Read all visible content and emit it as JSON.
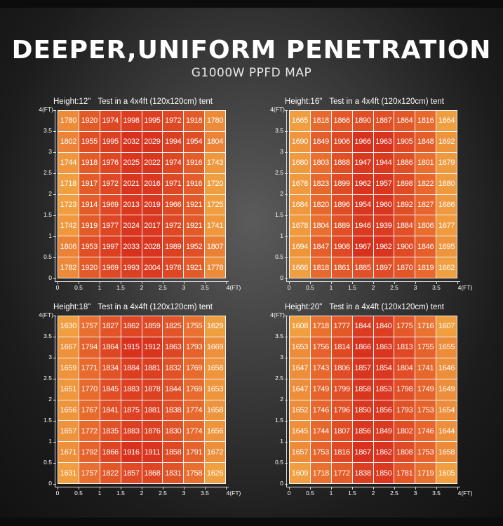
{
  "title": "DEEPER,UNIFORM PENETRATION",
  "subtitle": "G1000W PPFD MAP",
  "axis_unit": "(FT)",
  "y_ticks": [
    "4(FT)",
    "3.5",
    "3",
    "2.5",
    "2",
    "1.5",
    "1",
    "0.5",
    "0"
  ],
  "x_ticks": [
    "0",
    "0.5",
    "1",
    "1.5",
    "2",
    "2.5",
    "3",
    "3.5",
    "4(FT)"
  ],
  "panels": [
    {
      "height_label": "Height:12\"",
      "test_label": "Test in a 4x4ft (120x120cm) tent",
      "rows": [
        [
          1780,
          1920,
          1974,
          1998,
          1995,
          1972,
          1918,
          1780
        ],
        [
          1802,
          1955,
          1995,
          2032,
          2029,
          1994,
          1954,
          1804
        ],
        [
          1744,
          1918,
          1976,
          2025,
          2022,
          1974,
          1916,
          1743
        ],
        [
          1718,
          1917,
          1972,
          2021,
          2016,
          1971,
          1916,
          1720
        ],
        [
          1723,
          1914,
          1969,
          2013,
          2019,
          1966,
          1921,
          1725
        ],
        [
          1742,
          1919,
          1977,
          2024,
          2017,
          1972,
          1921,
          1741
        ],
        [
          1806,
          1953,
          1997,
          2033,
          2028,
          1989,
          1952,
          1807
        ],
        [
          1782,
          1920,
          1969,
          1993,
          2004,
          1978,
          1921,
          1778
        ]
      ]
    },
    {
      "height_label": "Height:16\"",
      "test_label": "Test in a 4x4ft (120x120cm) tent",
      "rows": [
        [
          1665,
          1818,
          1866,
          1890,
          1887,
          1864,
          1816,
          1664
        ],
        [
          1690,
          1849,
          1906,
          1966,
          1963,
          1905,
          1848,
          1692
        ],
        [
          1680,
          1803,
          1888,
          1947,
          1944,
          1886,
          1801,
          1679
        ],
        [
          1678,
          1823,
          1899,
          1962,
          1957,
          1898,
          1822,
          1680
        ],
        [
          1684,
          1820,
          1896,
          1954,
          1960,
          1892,
          1827,
          1686
        ],
        [
          1678,
          1804,
          1889,
          1946,
          1939,
          1884,
          1806,
          1677
        ],
        [
          1694,
          1847,
          1908,
          1967,
          1962,
          1900,
          1846,
          1695
        ],
        [
          1666,
          1818,
          1861,
          1885,
          1897,
          1870,
          1819,
          1662
        ]
      ]
    },
    {
      "height_label": "Height:18\"",
      "test_label": "Test in a 4x4ft (120x120cm) tent",
      "rows": [
        [
          1630,
          1757,
          1827,
          1862,
          1859,
          1825,
          1755,
          1629
        ],
        [
          1667,
          1794,
          1864,
          1915,
          1912,
          1863,
          1793,
          1669
        ],
        [
          1659,
          1771,
          1834,
          1884,
          1881,
          1832,
          1769,
          1658
        ],
        [
          1651,
          1770,
          1845,
          1883,
          1878,
          1844,
          1769,
          1653
        ],
        [
          1656,
          1767,
          1841,
          1875,
          1881,
          1838,
          1774,
          1658
        ],
        [
          1657,
          1772,
          1835,
          1883,
          1876,
          1830,
          1774,
          1656
        ],
        [
          1671,
          1792,
          1866,
          1916,
          1911,
          1858,
          1791,
          1672
        ],
        [
          1631,
          1757,
          1822,
          1857,
          1868,
          1831,
          1758,
          1626
        ]
      ]
    },
    {
      "height_label": "Height:20\"",
      "test_label": "Test in a 4x4ft (120x120cm) tent",
      "rows": [
        [
          1608,
          1718,
          1777,
          1844,
          1840,
          1775,
          1716,
          1607
        ],
        [
          1653,
          1756,
          1814,
          1866,
          1863,
          1813,
          1755,
          1655
        ],
        [
          1647,
          1743,
          1806,
          1857,
          1854,
          1804,
          1741,
          1646
        ],
        [
          1647,
          1749,
          1799,
          1858,
          1853,
          1798,
          1749,
          1649
        ],
        [
          1652,
          1746,
          1796,
          1850,
          1856,
          1793,
          1753,
          1654
        ],
        [
          1645,
          1744,
          1807,
          1856,
          1849,
          1802,
          1746,
          1644
        ],
        [
          1657,
          1753,
          1816,
          1867,
          1862,
          1808,
          1753,
          1658
        ],
        [
          1609,
          1718,
          1772,
          1838,
          1850,
          1781,
          1719,
          1605
        ]
      ]
    }
  ],
  "colors": {
    "low": "#f0a040",
    "mid": "#e86a2e",
    "high": "#d8321e"
  }
}
